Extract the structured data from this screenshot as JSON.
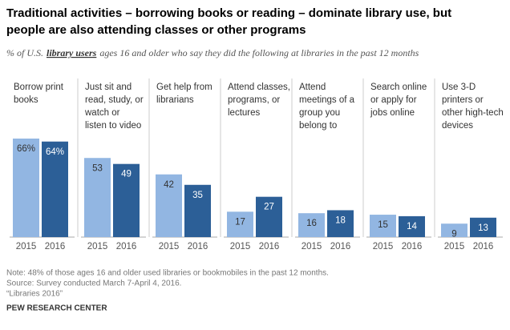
{
  "chart_data": {
    "type": "bar",
    "title": [
      "Traditional activities – borrowing books or reading – dominate library use, but",
      "people are also attending classes or other programs"
    ],
    "subtitle_parts": [
      "% of U.S.",
      "library users",
      "ages 16 and older who say they did the following at libraries in the past 12 months"
    ],
    "categories": [
      [
        "Borrow print",
        "books"
      ],
      [
        "Just sit and",
        "read, study, or",
        "watch or",
        "listen to video"
      ],
      [
        "Get help from",
        "librarians"
      ],
      [
        "Attend classes,",
        "programs, or",
        "lectures"
      ],
      [
        "Attend",
        "meetings of a",
        "group you",
        "belong to"
      ],
      [
        "Search online",
        "or apply for",
        "jobs online"
      ],
      [
        "Use 3-D",
        "printers or",
        "other high-tech",
        "devices"
      ]
    ],
    "series": [
      {
        "name": "2015",
        "color": "#92b6e2",
        "values": [
          66,
          53,
          42,
          17,
          16,
          15,
          9
        ],
        "value_labels": [
          "66%",
          "53",
          "42",
          "17",
          "16",
          "15",
          "9"
        ]
      },
      {
        "name": "2016",
        "color": "#2c5f97",
        "values": [
          64,
          49,
          35,
          27,
          18,
          14,
          13
        ],
        "value_labels": [
          "64%",
          "49",
          "35",
          "27",
          "18",
          "14",
          "13"
        ]
      }
    ],
    "notes": [
      "Note: 48% of those ages 16 and older used libraries or bookmobiles in the past 12 months.",
      "Source: Survey conducted March 7-April 4, 2016.",
      "“Libraries 2016”"
    ],
    "source": "PEW RESEARCH CENTER"
  }
}
